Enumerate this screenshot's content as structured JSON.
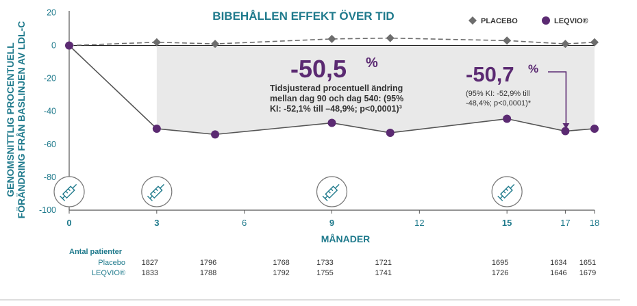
{
  "chart_data": {
    "type": "line",
    "title": "BIBEHÅLLEN EFFEKT ÖVER TID",
    "ylabel_line1": "GENOMSNITTLIG PROCENTUELL",
    "ylabel_line2": "FÖRÄNDRING FRÅN BASLINJEN AV LDL-C",
    "xlabel": "MÅNADER",
    "ylim": [
      -100,
      20
    ],
    "xlim": [
      0,
      18
    ],
    "yticks": [
      "20",
      "0",
      "-20",
      "-40",
      "-60",
      "-80",
      "-100"
    ],
    "xticks": [
      "0",
      "3",
      "6",
      "9",
      "12",
      "15",
      "17",
      "18"
    ],
    "grid": false,
    "legend_position": "top-right",
    "series": [
      {
        "name": "PLACEBO",
        "color": "#6d6d6d",
        "marker": "diamond",
        "line": "dashed",
        "x": [
          0,
          3,
          5,
          9,
          11,
          15,
          17,
          18
        ],
        "y": [
          0,
          2,
          1,
          4,
          4.5,
          3,
          1,
          2
        ]
      },
      {
        "name": "LEQVIO®",
        "color": "#5b2a72",
        "marker": "circle",
        "line": "solid",
        "x": [
          0,
          3,
          5,
          9,
          11,
          15,
          17,
          18
        ],
        "y": [
          0,
          -50.5,
          -54,
          -47,
          -53,
          -44.5,
          -52,
          -50.5
        ]
      }
    ],
    "injection_months": [
      0,
      3,
      9,
      15
    ],
    "annotations": {
      "main_value": "-50,5",
      "main_pct": "%",
      "main_text": [
        "Tidsjusterad procentuell ändring",
        "mellan dag 90 och dag 540: (95%",
        "KI: -52,1% till –48,9%; p<0,0001)³"
      ],
      "end_value": "-50,7",
      "end_pct": "%",
      "end_text": [
        "(95% KI: -52,9% till",
        "-48,4%; p<0,0001)*"
      ]
    },
    "patients_table": {
      "header": "Antal patienter",
      "months": [
        3,
        5,
        7.5,
        9,
        11,
        15,
        17,
        18
      ],
      "rows": [
        {
          "label": "Placebo",
          "values": [
            "1827",
            "1796",
            "1768",
            "1733",
            "1721",
            "1695",
            "1634",
            "1651"
          ]
        },
        {
          "label": "LEQVIO®",
          "values": [
            "1833",
            "1788",
            "1792",
            "1755",
            "1741",
            "1726",
            "1646",
            "1679"
          ]
        }
      ]
    }
  },
  "colors": {
    "teal": "#1f7a8c",
    "purple": "#5b2a72",
    "placebo_gray": "#6d6d6d",
    "shade": "#e9e9e9"
  },
  "icons": [
    "syringe-icon"
  ]
}
